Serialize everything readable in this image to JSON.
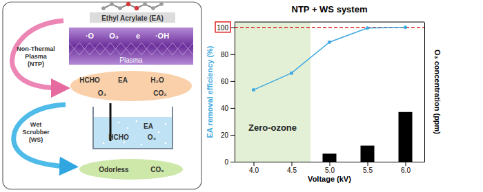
{
  "diagram": {
    "molecule_label": "Ethyl Acrylate (EA)",
    "step1": [
      "Non-Thermal",
      "Plasma",
      "(NTP)"
    ],
    "plasma_species": [
      "·O",
      "O₃",
      "e",
      "·OH"
    ],
    "plasma_label": "Plasma",
    "products": [
      "HCHO",
      "EA",
      "H₂O",
      "O₃",
      "CO₂"
    ],
    "step2": [
      "Wet",
      "Scrubber",
      "(WS)"
    ],
    "scrubber_contents": [
      "EA",
      "HCHO",
      "O₃"
    ],
    "output": [
      "Odorless",
      "CO₂"
    ]
  },
  "chart_data": {
    "type": "line",
    "title": "NTP + WS system",
    "x_label": "Voltage (kV)",
    "y_label": "EA removal efficiency (%)",
    "y2_label": "O₃ concentration (ppm)",
    "x": [
      4,
      4.5,
      5,
      5.5,
      6
    ],
    "xlim": [
      3.75,
      6.25
    ],
    "xticks": [
      {
        "value": 4,
        "label": "4.0"
      },
      {
        "value": 4.5,
        "label": "4.5"
      },
      {
        "value": 5,
        "label": "5.0"
      },
      {
        "value": 5.5,
        "label": "5.5"
      },
      {
        "value": 6,
        "label": "6.0"
      }
    ],
    "ylim": [
      0,
      104
    ],
    "yticks": [
      0,
      20,
      40,
      60,
      80,
      100
    ],
    "y2lim": [
      0,
      104
    ],
    "y2ticks": [],
    "grid": false,
    "series": [
      {
        "type": "line",
        "color": "#3fa9e0",
        "marker": "circle",
        "values": [
          53.5,
          66,
          89,
          99.5,
          100
        ]
      },
      {
        "type": "bar",
        "axis": "y2",
        "color": "#000000",
        "values": [
          null,
          null,
          6,
          12,
          37
        ]
      }
    ],
    "annotations": [
      {
        "text": "Zero-ozone",
        "x": [
          3.75,
          4.75
        ],
        "color": "#e3f0d6"
      }
    ],
    "reference_lines": [
      {
        "y": 100,
        "color": "#e02020",
        "line_style": "dashed"
      }
    ]
  }
}
